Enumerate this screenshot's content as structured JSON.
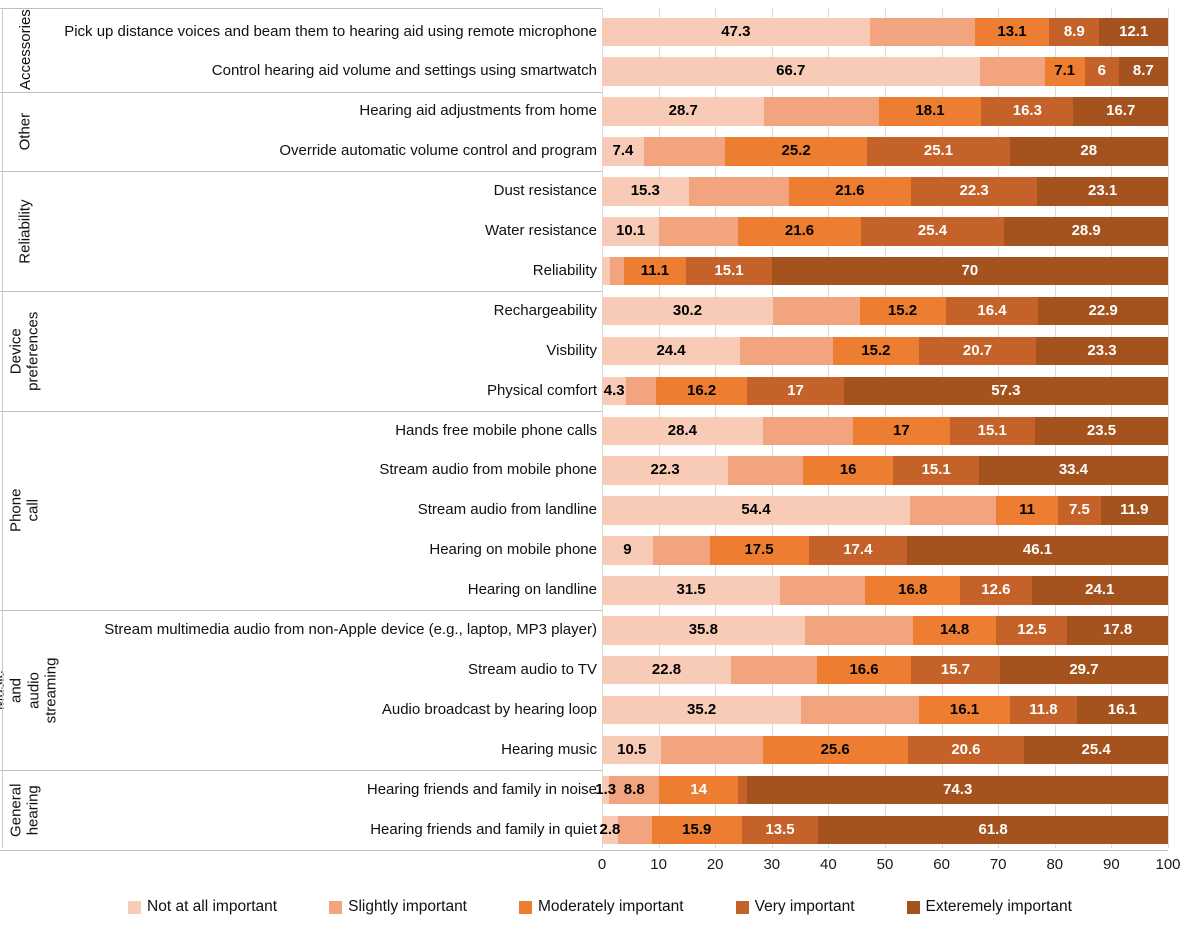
{
  "chart_data": {
    "type": "bar",
    "subtype": "stacked-horizontal",
    "title": "",
    "xlabel": "",
    "ylabel": "",
    "x_axis": {
      "min": 0,
      "max": 100,
      "ticks": [
        0,
        10,
        20,
        30,
        40,
        50,
        60,
        70,
        80,
        90,
        100
      ],
      "grid": true
    },
    "legend_position": "bottom",
    "series_names": [
      "Not at all important",
      "Slightly important",
      "Moderately important",
      "Very important",
      "Exteremely important"
    ],
    "series_colors": [
      "#F7CBB5",
      "#F2A47F",
      "#ED7D31",
      "#C4622A",
      "#A5531E"
    ],
    "label_colors": {
      "dark": "#000000",
      "light": "#FFFFFF"
    },
    "groups": [
      {
        "name": "Accessories",
        "rows": 2
      },
      {
        "name": "Other",
        "rows": 2
      },
      {
        "name": "Reliability",
        "rows": 3
      },
      {
        "name": "Device\npreferences",
        "rows": 3
      },
      {
        "name": "Phone call",
        "rows": 5
      },
      {
        "name": "Music and audio\nstreaming",
        "rows": 4
      },
      {
        "name": "General\nhearing",
        "rows": 2
      }
    ],
    "rows": [
      {
        "label": "Pick up distance voices and beam them to hearing aid using remote microphone",
        "values": [
          47.3,
          18.6,
          13.1,
          8.9,
          12.1
        ],
        "value_labels": [
          "47.3",
          null,
          "13.1",
          "8.9",
          "12.1"
        ]
      },
      {
        "label": "Control hearing aid volume and settings using smartwatch",
        "values": [
          66.7,
          11.5,
          7.1,
          6,
          8.7
        ],
        "value_labels": [
          "66.7",
          null,
          "7.1",
          "6",
          "8.7"
        ]
      },
      {
        "label": "Hearing aid adjustments from home",
        "values": [
          28.7,
          20.2,
          18.1,
          16.3,
          16.7
        ],
        "value_labels": [
          "28.7",
          null,
          "18.1",
          "16.3",
          "16.7"
        ]
      },
      {
        "label": "Override automatic volume control and program",
        "values": [
          7.4,
          14.3,
          25.2,
          25.1,
          28
        ],
        "value_labels": [
          "7.4",
          null,
          "25.2",
          "25.1",
          "28"
        ]
      },
      {
        "label": "Dust resistance",
        "values": [
          15.3,
          17.7,
          21.6,
          22.3,
          23.1
        ],
        "value_labels": [
          "15.3",
          null,
          "21.6",
          "22.3",
          "23.1"
        ]
      },
      {
        "label": "Water resistance",
        "values": [
          10.1,
          14.0,
          21.6,
          25.4,
          28.9
        ],
        "value_labels": [
          "10.1",
          null,
          "21.6",
          "25.4",
          "28.9"
        ]
      },
      {
        "label": "Reliability",
        "values": [
          1.4,
          2.4,
          11.1,
          15.1,
          70
        ],
        "value_labels": [
          null,
          null,
          "11.1",
          "15.1",
          "70"
        ]
      },
      {
        "label": "Rechargeability",
        "values": [
          30.2,
          15.3,
          15.2,
          16.4,
          22.9
        ],
        "value_labels": [
          "30.2",
          null,
          "15.2",
          "16.4",
          "22.9"
        ]
      },
      {
        "label": "Visbility",
        "values": [
          24.4,
          16.4,
          15.2,
          20.7,
          23.3
        ],
        "value_labels": [
          "24.4",
          null,
          "15.2",
          "20.7",
          "23.3"
        ]
      },
      {
        "label": "Physical comfort",
        "values": [
          4.3,
          5.2,
          16.2,
          17,
          57.3
        ],
        "value_labels": [
          "4.3",
          null,
          "16.2",
          "17",
          "57.3"
        ]
      },
      {
        "label": "Hands free mobile phone calls",
        "values": [
          28.4,
          16.0,
          17,
          15.1,
          23.5
        ],
        "value_labels": [
          "28.4",
          null,
          "17",
          "15.1",
          "23.5"
        ]
      },
      {
        "label": "Stream audio from mobile phone",
        "values": [
          22.3,
          13.2,
          16,
          15.1,
          33.4
        ],
        "value_labels": [
          "22.3",
          null,
          "16",
          "15.1",
          "33.4"
        ]
      },
      {
        "label": "Stream audio from landline",
        "values": [
          54.4,
          15.2,
          11,
          7.5,
          11.9
        ],
        "value_labels": [
          "54.4",
          null,
          "11",
          "7.5",
          "11.9"
        ]
      },
      {
        "label": "Hearing on mobile phone",
        "values": [
          9,
          10.0,
          17.5,
          17.4,
          46.1
        ],
        "value_labels": [
          "9",
          null,
          "17.5",
          "17.4",
          "46.1"
        ]
      },
      {
        "label": "Hearing on landline",
        "values": [
          31.5,
          15.0,
          16.8,
          12.6,
          24.1
        ],
        "value_labels": [
          "31.5",
          null,
          "16.8",
          "12.6",
          "24.1"
        ]
      },
      {
        "label": "Stream multimedia audio from non-Apple device (e.g., laptop, MP3 player)",
        "values": [
          35.8,
          19.1,
          14.8,
          12.5,
          17.8
        ],
        "value_labels": [
          "35.8",
          null,
          "14.8",
          "12.5",
          "17.8"
        ]
      },
      {
        "label": "Stream audio to TV",
        "values": [
          22.8,
          15.2,
          16.6,
          15.7,
          29.7
        ],
        "value_labels": [
          "22.8",
          null,
          "16.6",
          "15.7",
          "29.7"
        ]
      },
      {
        "label": "Audio broadcast by hearing loop",
        "values": [
          35.2,
          20.8,
          16.1,
          11.8,
          16.1
        ],
        "value_labels": [
          "35.2",
          null,
          "16.1",
          "11.8",
          "16.1"
        ]
      },
      {
        "label": "Hearing music",
        "values": [
          10.5,
          17.9,
          25.6,
          20.6,
          25.4
        ],
        "value_labels": [
          "10.5",
          null,
          "25.6",
          "20.6",
          "25.4"
        ]
      },
      {
        "label": "Hearing friends and family in noise",
        "values": [
          1.3,
          8.8,
          14,
          1.6,
          74.3
        ],
        "value_labels": [
          "1.3",
          "8.8",
          "14",
          null,
          "74.3"
        ],
        "white_from": 2
      },
      {
        "label": "Hearing friends and family in quiet",
        "values": [
          2.8,
          6.0,
          15.9,
          13.5,
          61.8
        ],
        "value_labels": [
          "2.8",
          null,
          "15.9",
          "13.5",
          "61.8"
        ]
      }
    ]
  }
}
